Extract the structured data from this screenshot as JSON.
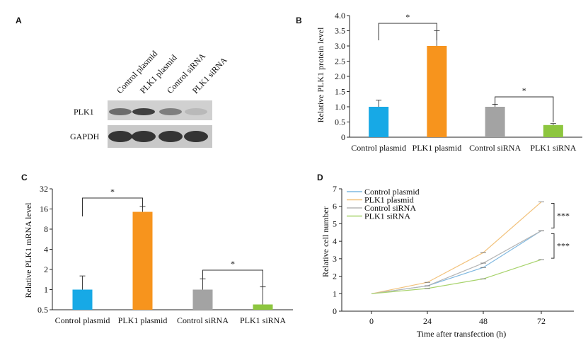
{
  "panels": {
    "A": {
      "letter": "A",
      "lanes": [
        "Control plasmid",
        "PLK1 plasmid",
        "Control siRNA",
        "PLK1 siRNA"
      ],
      "rows": [
        "PLK1",
        "GAPDH"
      ],
      "plk1_band_intensity": [
        0.55,
        0.8,
        0.45,
        0.12
      ],
      "gapdh_band_intensity": [
        0.85,
        0.85,
        0.85,
        0.85
      ]
    },
    "B": {
      "letter": "B"
    },
    "C": {
      "letter": "C"
    },
    "D": {
      "letter": "D"
    }
  },
  "colors": {
    "control_plasmid": "#17a9e6",
    "plk1_plasmid": "#f7941d",
    "control_sirna": "#a3a3a3",
    "plk1_sirna": "#8dc63f",
    "sig": "*",
    "sig3": "***"
  },
  "chart_data": [
    {
      "id": "B",
      "type": "bar",
      "categories": [
        "Control plasmid",
        "PLK1 plasmid",
        "Control siRNA",
        "PLK1 siRNA"
      ],
      "values": [
        1.0,
        3.0,
        1.0,
        0.4
      ],
      "errors": [
        0.22,
        0.5,
        0.08,
        0.05
      ],
      "ylabel": "Relative PLK1 protein level",
      "ylim": [
        0,
        4.0
      ],
      "yticks": [
        "0",
        "0.5",
        "1.0",
        "1.5",
        "2.0",
        "2.5",
        "3.0",
        "3.5",
        "4.0"
      ],
      "significance": [
        {
          "pair": [
            0,
            1
          ],
          "label": "*"
        },
        {
          "pair": [
            2,
            3
          ],
          "label": "*"
        }
      ]
    },
    {
      "id": "C",
      "type": "bar",
      "scale": "log2",
      "categories": [
        "Control plasmid",
        "PLK1 plasmid",
        "Control siRNA",
        "PLK1 siRNA"
      ],
      "values": [
        1.0,
        14.5,
        1.0,
        0.6
      ],
      "errors_upper": [
        1.6,
        17.5,
        1.45,
        1.1
      ],
      "ylabel": "Relative PLK1 mRNA level",
      "ylim": [
        0.5,
        32
      ],
      "yticks": [
        "0.5",
        "1",
        "2",
        "4",
        "8",
        "16",
        "32"
      ],
      "significance": [
        {
          "pair": [
            0,
            1
          ],
          "label": "*"
        },
        {
          "pair": [
            2,
            3
          ],
          "label": "*"
        }
      ]
    },
    {
      "id": "D",
      "type": "line",
      "x": [
        0,
        24,
        48,
        72
      ],
      "xticks": [
        "0",
        "24",
        "48",
        "72"
      ],
      "xlabel": "Time after transfection (h)",
      "ylabel": "Relative cell number",
      "ylim": [
        0,
        7
      ],
      "yticks": [
        "0",
        "1",
        "2",
        "3",
        "4",
        "5",
        "6",
        "7"
      ],
      "legend_position": "top-left",
      "series": [
        {
          "name": "Control plasmid",
          "values": [
            1,
            1.45,
            2.5,
            4.6
          ]
        },
        {
          "name": "PLK1 plasmid",
          "values": [
            1,
            1.65,
            3.35,
            6.25
          ]
        },
        {
          "name": "Control siRNA",
          "values": [
            1,
            1.45,
            2.75,
            4.6
          ]
        },
        {
          "name": "PLK1 siRNA",
          "values": [
            1,
            1.3,
            1.85,
            2.95
          ]
        }
      ],
      "significance": [
        {
          "between": [
            6.25,
            4.6
          ],
          "label": "***"
        },
        {
          "between": [
            4.6,
            2.95
          ],
          "label": "***"
        }
      ]
    }
  ]
}
